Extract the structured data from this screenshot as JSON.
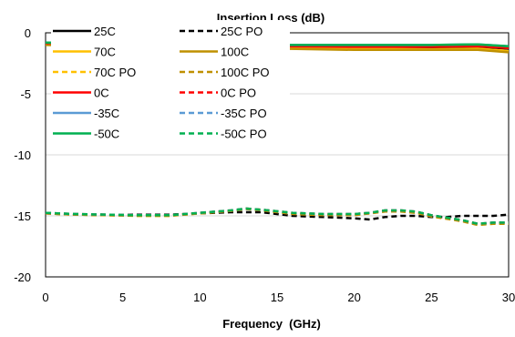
{
  "chart_data": {
    "type": "line",
    "title": "Insertion Loss (dB)",
    "xlabel": "Frequency  (GHz)",
    "ylabel": "",
    "xlim": [
      0,
      30
    ],
    "ylim": [
      -20,
      0
    ],
    "xticks": [
      0,
      5,
      10,
      15,
      20,
      25,
      30
    ],
    "yticks": [
      0,
      -5,
      -10,
      -15,
      -20
    ],
    "grid": "horizontal",
    "legend_position": "inside-top-left",
    "series": [
      {
        "name": "25C",
        "color": "#000000",
        "dash": "solid",
        "x": [
          0,
          5,
          10,
          15,
          20,
          25,
          28,
          30
        ],
        "y": [
          -0.9,
          -1.0,
          -1.05,
          -1.15,
          -1.2,
          -1.2,
          -1.15,
          -1.3
        ]
      },
      {
        "name": "25C PO",
        "color": "#000000",
        "dash": "dashed",
        "x": [
          0,
          2,
          4,
          6,
          8,
          10,
          12,
          14,
          16,
          18,
          20,
          21,
          22,
          23,
          24,
          25,
          26,
          27,
          28,
          29,
          30
        ],
        "y": [
          -14.8,
          -14.9,
          -14.95,
          -14.9,
          -14.9,
          -14.8,
          -14.7,
          -14.7,
          -15.0,
          -15.1,
          -15.2,
          -15.3,
          -15.1,
          -15.0,
          -15.0,
          -15.1,
          -15.1,
          -15.0,
          -15.0,
          -15.0,
          -14.9
        ]
      },
      {
        "name": "70C",
        "color": "#FFC000",
        "dash": "solid",
        "x": [
          0,
          5,
          10,
          15,
          20,
          25,
          28,
          30
        ],
        "y": [
          -0.95,
          -1.05,
          -1.1,
          -1.2,
          -1.3,
          -1.35,
          -1.3,
          -1.5
        ]
      },
      {
        "name": "100C",
        "color": "#BF9000",
        "dash": "solid",
        "x": [
          0,
          5,
          10,
          15,
          20,
          25,
          28,
          30
        ],
        "y": [
          -1.0,
          -1.1,
          -1.2,
          -1.3,
          -1.4,
          -1.4,
          -1.4,
          -1.6
        ]
      },
      {
        "name": "70C PO",
        "color": "#FFC000",
        "dash": "dashed",
        "x": [
          0,
          2,
          4,
          6,
          8,
          10,
          12,
          13,
          14,
          16,
          18,
          20,
          21,
          22,
          23,
          24,
          25,
          26,
          27,
          28,
          29,
          30
        ],
        "y": [
          -14.8,
          -14.9,
          -14.95,
          -15.0,
          -15.0,
          -14.8,
          -14.6,
          -14.4,
          -14.5,
          -14.8,
          -14.9,
          -14.9,
          -14.8,
          -14.6,
          -14.6,
          -14.7,
          -15.0,
          -15.2,
          -15.4,
          -15.7,
          -15.6,
          -15.6
        ]
      },
      {
        "name": "100C PO",
        "color": "#BF9000",
        "dash": "dashed",
        "x": [
          0,
          2,
          4,
          6,
          8,
          10,
          12,
          13,
          14,
          16,
          18,
          20,
          21,
          22,
          23,
          24,
          25,
          26,
          27,
          28,
          29,
          30
        ],
        "y": [
          -14.8,
          -14.9,
          -14.95,
          -15.0,
          -15.0,
          -14.8,
          -14.6,
          -14.45,
          -14.55,
          -14.85,
          -14.95,
          -14.95,
          -14.8,
          -14.65,
          -14.65,
          -14.75,
          -15.05,
          -15.25,
          -15.45,
          -15.75,
          -15.65,
          -15.65
        ]
      },
      {
        "name": "0C",
        "color": "#FF0000",
        "dash": "solid",
        "x": [
          0,
          5,
          10,
          15,
          20,
          25,
          28,
          30
        ],
        "y": [
          -0.85,
          -0.95,
          -1.0,
          -1.1,
          -1.15,
          -1.15,
          -1.1,
          -1.25
        ]
      },
      {
        "name": "0C PO",
        "color": "#FF0000",
        "dash": "dashed",
        "x": [
          0,
          2,
          4,
          6,
          8,
          10,
          12,
          13,
          14,
          16,
          18,
          20,
          21,
          22,
          23,
          24,
          25,
          26,
          27,
          28,
          29,
          30
        ],
        "y": [
          -14.75,
          -14.85,
          -14.9,
          -14.95,
          -14.95,
          -14.75,
          -14.55,
          -14.4,
          -14.5,
          -14.75,
          -14.85,
          -14.85,
          -14.75,
          -14.55,
          -14.55,
          -14.65,
          -14.95,
          -15.15,
          -15.35,
          -15.65,
          -15.55,
          -15.55
        ]
      },
      {
        "name": "-35C",
        "color": "#5B9BD5",
        "dash": "solid",
        "x": [
          0,
          5,
          10,
          15,
          20,
          25,
          28,
          30
        ],
        "y": [
          -0.8,
          -0.9,
          -0.95,
          -1.0,
          -1.0,
          -1.0,
          -0.95,
          -1.1
        ]
      },
      {
        "name": "-35C PO",
        "color": "#5B9BD5",
        "dash": "dashed",
        "x": [
          0,
          2,
          4,
          6,
          8,
          10,
          12,
          13,
          14,
          16,
          18,
          20,
          21,
          22,
          23,
          24,
          25,
          26,
          27,
          28,
          29,
          30
        ],
        "y": [
          -14.75,
          -14.85,
          -14.9,
          -14.95,
          -14.95,
          -14.75,
          -14.55,
          -14.4,
          -14.5,
          -14.75,
          -14.85,
          -14.85,
          -14.75,
          -14.55,
          -14.55,
          -14.65,
          -14.95,
          -15.15,
          -15.35,
          -15.65,
          -15.55,
          -15.55
        ]
      },
      {
        "name": "-50C",
        "color": "#00B050",
        "dash": "solid",
        "x": [
          0,
          5,
          10,
          15,
          20,
          25,
          28,
          30
        ],
        "y": [
          -0.8,
          -0.9,
          -0.95,
          -1.0,
          -1.0,
          -1.0,
          -0.95,
          -1.1
        ]
      },
      {
        "name": "-50C PO",
        "color": "#00B050",
        "dash": "dashed",
        "x": [
          0,
          2,
          4,
          6,
          8,
          10,
          12,
          13,
          14,
          16,
          18,
          20,
          21,
          22,
          23,
          24,
          25,
          26,
          27,
          28,
          29,
          30
        ],
        "y": [
          -14.75,
          -14.85,
          -14.9,
          -14.95,
          -14.95,
          -14.75,
          -14.55,
          -14.4,
          -14.5,
          -14.75,
          -14.85,
          -14.85,
          -14.75,
          -14.55,
          -14.55,
          -14.65,
          -14.95,
          -15.15,
          -15.35,
          -15.65,
          -15.55,
          -15.55
        ]
      }
    ]
  }
}
